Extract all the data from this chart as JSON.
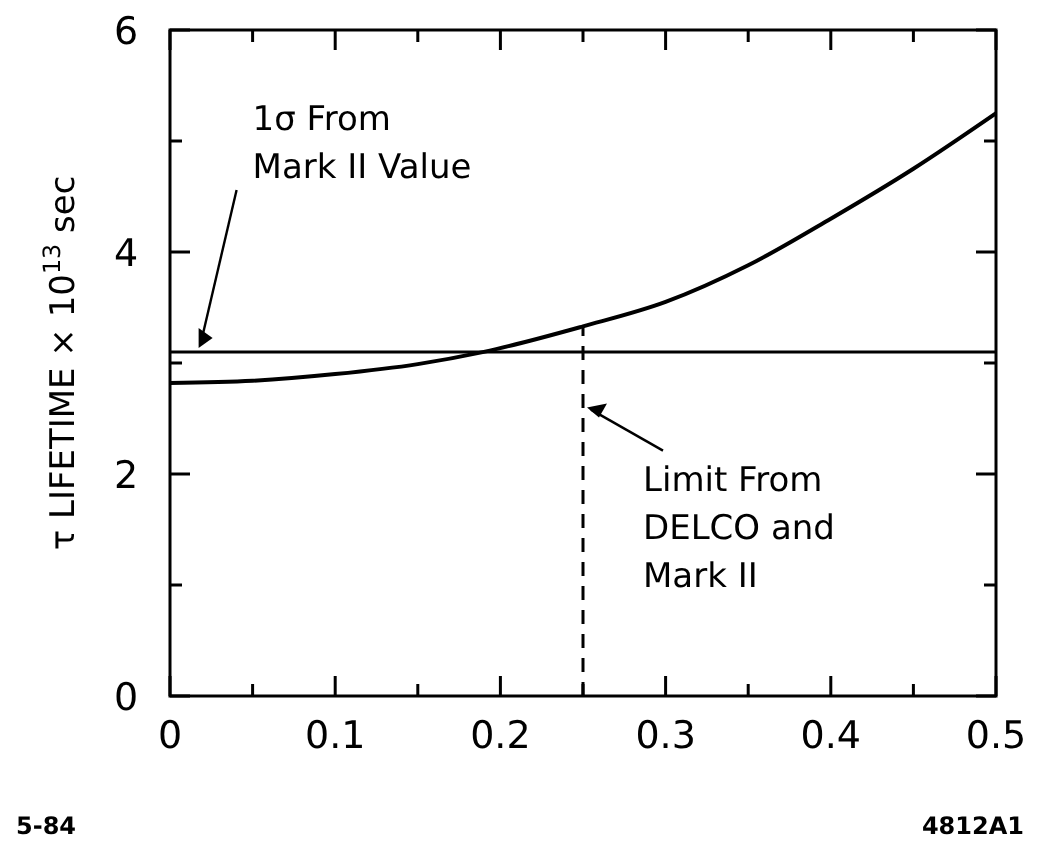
{
  "chart_data": {
    "type": "line",
    "ylabel": "τ LIFETIME × 10$^{13}$ sec",
    "x": [
      0,
      0.05,
      0.1,
      0.15,
      0.19,
      0.25,
      0.3,
      0.35,
      0.4,
      0.45,
      0.5
    ],
    "series": [
      {
        "color": "#000000",
        "values": [
          2.82,
          2.84,
          2.9,
          2.99,
          3.1,
          3.33,
          3.55,
          3.88,
          4.3,
          4.75,
          5.25
        ]
      }
    ],
    "xlim": [
      0,
      0.5
    ],
    "ylim": [
      0,
      6
    ],
    "xticks": [
      0,
      {
        "value": 0.05,
        "label": null
      },
      0.1,
      {
        "value": 0.15,
        "label": null
      },
      0.2,
      {
        "value": 0.25,
        "label": null
      },
      0.3,
      {
        "value": 0.35,
        "label": null
      },
      0.4,
      {
        "value": 0.45,
        "label": null
      },
      0.5
    ],
    "yticks": [
      0,
      {
        "value": 1,
        "label": null
      },
      2,
      {
        "value": 3,
        "label": null
      },
      4,
      {
        "value": 5,
        "label": null
      },
      6
    ],
    "ref_lines": [
      {
        "axis": "y",
        "value": 3.1,
        "label": "1σ From\nMark II Value",
        "line_style": "solid"
      },
      {
        "axis": "x",
        "value": 0.25,
        "label": "Limit From\nDELCO and\nMark II",
        "line_style": "dashed"
      }
    ],
    "annotations": [
      "5-84",
      "4812A1"
    ],
    "grid": false,
    "marker": "none",
    "line_style": "solid"
  }
}
